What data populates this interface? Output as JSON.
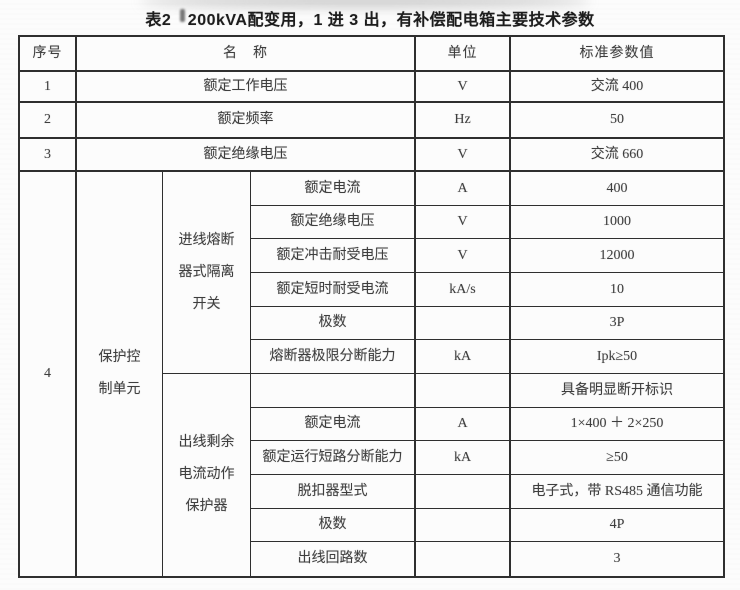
{
  "title": "表2　200kVA配变用，1 进 3 出，有补偿配电箱主要技术参数",
  "header": {
    "col_no": "序号",
    "col_name": "名　称",
    "col_unit": "单位",
    "col_value": "标准参数值"
  },
  "rows": [
    {
      "no": "1",
      "name": "额定工作电压",
      "unit": "V",
      "value": "交流 400"
    },
    {
      "no": "2",
      "name": "额定频率",
      "unit": "Hz",
      "value": "50"
    },
    {
      "no": "3",
      "name": "额定绝缘电压",
      "unit": "V",
      "value": "交流 660"
    }
  ],
  "row4": {
    "no": "4",
    "group_label": "保护控制单元",
    "sections": [
      {
        "label": "进线熔断器式隔离开关",
        "items": [
          {
            "name": "额定电流",
            "unit": "A",
            "value": "400"
          },
          {
            "name": "额定绝缘电压",
            "unit": "V",
            "value": "1000"
          },
          {
            "name": "额定冲击耐受电压",
            "unit": "V",
            "value": "12000"
          },
          {
            "name": "额定短时耐受电流",
            "unit": "kA/s",
            "value": "10"
          },
          {
            "name": "极数",
            "unit": "",
            "value": "3P"
          },
          {
            "name": "熔断器极限分断能力",
            "unit": "kA",
            "value": "Ipk≥50"
          }
        ]
      },
      {
        "label": "出线剩余电流动作保护器",
        "items": [
          {
            "name": "",
            "unit": "",
            "value": "具备明显断开标识"
          },
          {
            "name": "额定电流",
            "unit": "A",
            "value": "1×400 ＋ 2×250"
          },
          {
            "name": "额定运行短路分断能力",
            "unit": "kA",
            "value": "≥50"
          },
          {
            "name": "脱扣器型式",
            "unit": "",
            "value": "电子式，带 RS485 通信功能"
          },
          {
            "name": "极数",
            "unit": "",
            "value": "4P"
          },
          {
            "name": "出线回路数",
            "unit": "",
            "value": "3"
          }
        ]
      }
    ]
  }
}
